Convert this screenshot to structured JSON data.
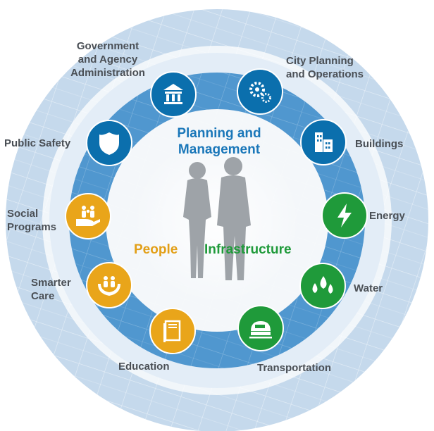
{
  "core": {
    "planning": "Planning and\nManagement",
    "people": "People",
    "infrastructure": "Infrastructure"
  },
  "colors": {
    "blue_icon": "#0b6fad",
    "green_icon": "#1f9a3a",
    "gold_icon": "#e9a51a",
    "ring": "#4e93cc",
    "outer_band": "#bfd5ea",
    "planning_text": "#1a77b9",
    "people_text": "#e29f17",
    "infrastructure_text": "#1f9a3a"
  },
  "segments": [
    {
      "key": "government",
      "label": "Government\nand Agency\nAdministration",
      "icon": "bank-icon",
      "color": "blue"
    },
    {
      "key": "city-planning",
      "label": "City Planning\nand Operations",
      "icon": "gears-icon",
      "color": "blue"
    },
    {
      "key": "buildings",
      "label": "Buildings",
      "icon": "building-icon",
      "color": "blue"
    },
    {
      "key": "energy",
      "label": "Energy",
      "icon": "lightning-icon",
      "color": "green"
    },
    {
      "key": "water",
      "label": "Water",
      "icon": "water-drops-icon",
      "color": "green"
    },
    {
      "key": "transportation",
      "label": "Transportation",
      "icon": "train-icon",
      "color": "green"
    },
    {
      "key": "education",
      "label": "Education",
      "icon": "book-icon",
      "color": "gold"
    },
    {
      "key": "smarter-care",
      "label": "Smarter\nCare",
      "icon": "caring-hands-icon",
      "color": "gold"
    },
    {
      "key": "social-programs",
      "label": "Social\nPrograms",
      "icon": "family-hand-icon",
      "color": "gold"
    },
    {
      "key": "public-safety",
      "label": "Public Safety",
      "icon": "shield-icon",
      "color": "blue"
    }
  ]
}
